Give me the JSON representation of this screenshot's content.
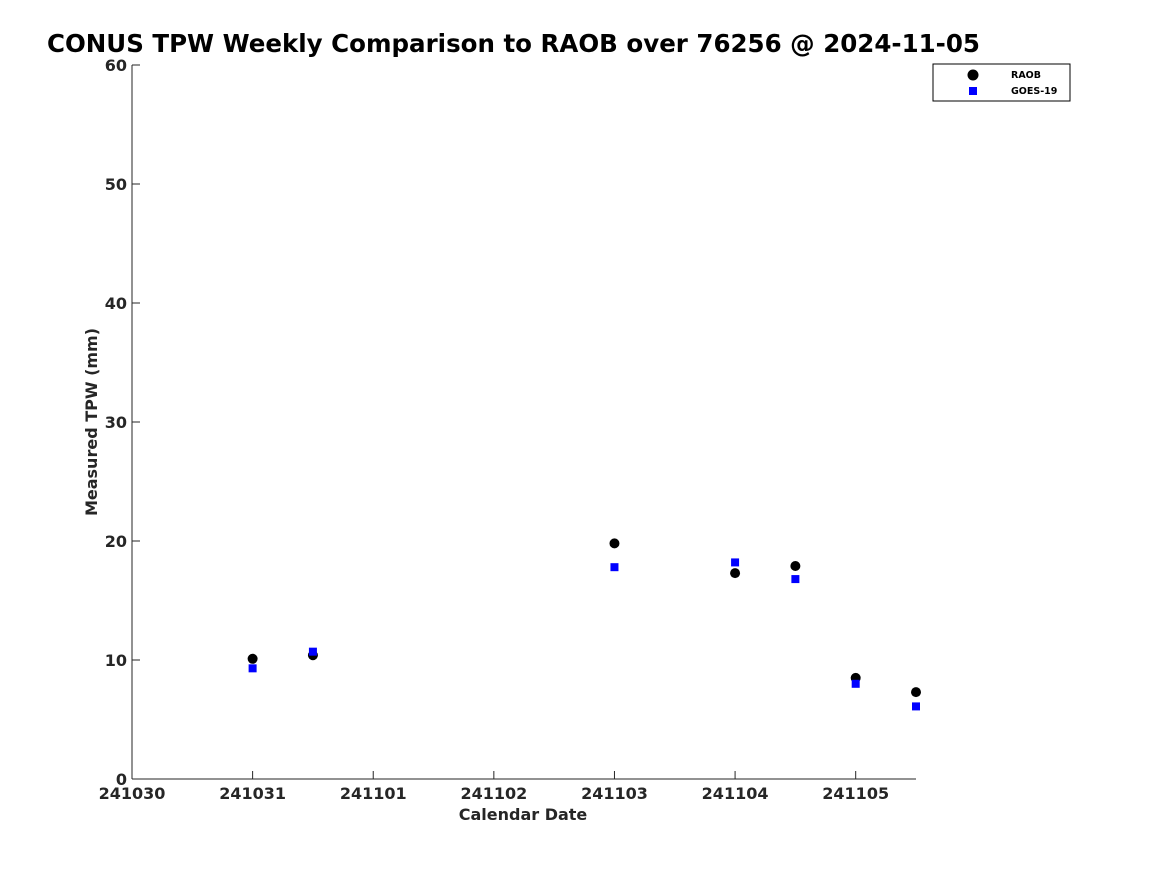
{
  "chart_data": {
    "type": "scatter",
    "title": "CONUS TPW Weekly Comparison to RAOB over 76256 @ 2024-11-05",
    "xlabel": "Calendar Date",
    "ylabel": "Measured TPW (mm)",
    "x_ticks": [
      "241030",
      "241031",
      "241101",
      "241102",
      "241103",
      "241104",
      "241105"
    ],
    "x_range_days": [
      0,
      6.5
    ],
    "ylim": [
      0,
      60
    ],
    "y_ticks": [
      0,
      10,
      20,
      30,
      40,
      50,
      60
    ],
    "grid": false,
    "legend_position": "top-right",
    "series": [
      {
        "name": "RAOB",
        "marker": "circle",
        "color": "#000000",
        "points": [
          {
            "x": "2024-10-31 00Z",
            "y": 10.1
          },
          {
            "x": "2024-10-31 12Z",
            "y": 10.4
          },
          {
            "x": "2024-11-03 00Z",
            "y": 19.8
          },
          {
            "x": "2024-11-04 00Z",
            "y": 17.3
          },
          {
            "x": "2024-11-04 12Z",
            "y": 17.9
          },
          {
            "x": "2024-11-05 00Z",
            "y": 8.5
          },
          {
            "x": "2024-11-05 12Z",
            "y": 7.3
          }
        ]
      },
      {
        "name": "GOES-19",
        "marker": "square",
        "color": "#0000ff",
        "points": [
          {
            "x": "2024-10-31 00Z",
            "y": 9.3
          },
          {
            "x": "2024-10-31 12Z",
            "y": 10.7
          },
          {
            "x": "2024-11-03 00Z",
            "y": 17.8
          },
          {
            "x": "2024-11-04 00Z",
            "y": 18.2
          },
          {
            "x": "2024-11-04 12Z",
            "y": 16.8
          },
          {
            "x": "2024-11-05 00Z",
            "y": 8.0
          },
          {
            "x": "2024-11-05 12Z",
            "y": 6.1
          }
        ]
      }
    ]
  }
}
